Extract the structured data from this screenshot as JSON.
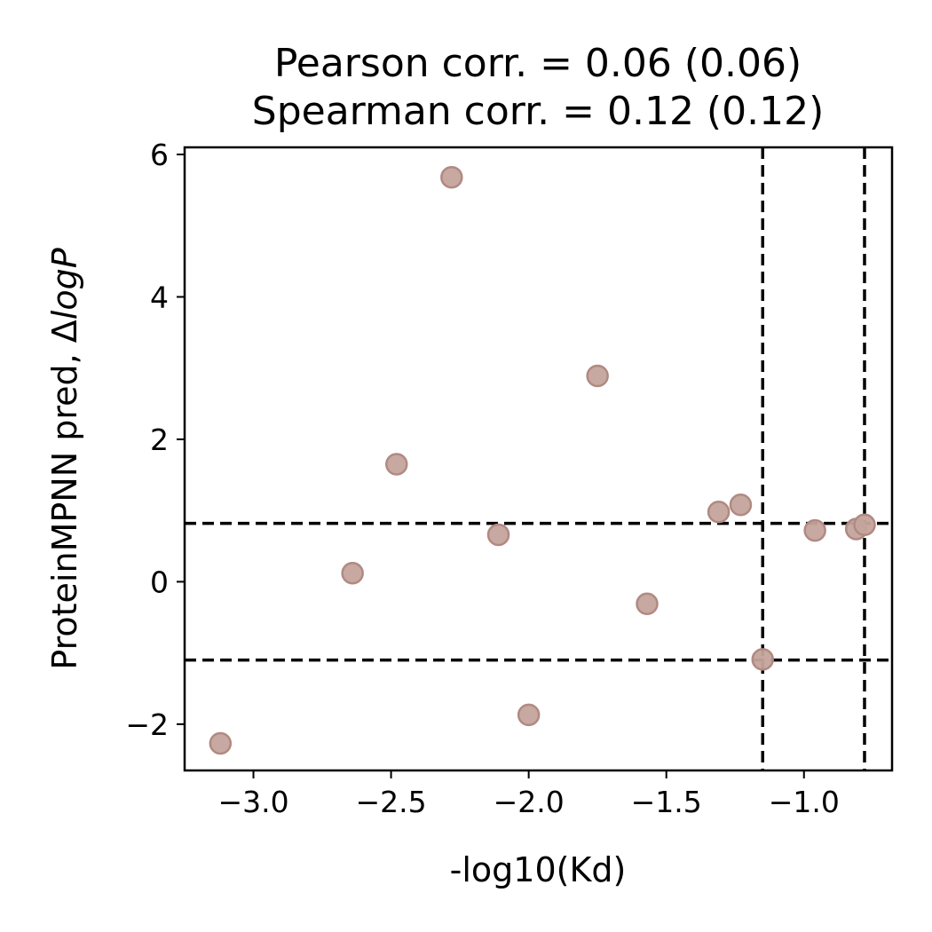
{
  "chart_data": {
    "type": "scatter",
    "title_line1": "Pearson corr. = 0.06 (0.06)",
    "title_line2": "Spearman corr. = 0.12 (0.12)",
    "xlabel": "-log10(Kd)",
    "ylabel_main": "ProteinMPNN pred, Δ",
    "ylabel_italic": "logP",
    "xlim": [
      -3.25,
      -0.68
    ],
    "ylim": [
      -2.65,
      6.1
    ],
    "x_ticks": [
      -3.0,
      -2.5,
      -2.0,
      -1.5,
      -1.0
    ],
    "x_tick_labels": [
      "−3.0",
      "−2.5",
      "−2.0",
      "−1.5",
      "−1.0"
    ],
    "y_ticks": [
      -2,
      0,
      2,
      4,
      6
    ],
    "y_tick_labels": [
      "−2",
      "0",
      "2",
      "4",
      "6"
    ],
    "grid": false,
    "marker_color": "#c4a49c",
    "marker_edge_color": "#b08a82",
    "reference_lines": {
      "vertical": [
        -1.15,
        -0.78
      ],
      "horizontal": [
        0.82,
        -1.1
      ],
      "style": "dashed",
      "color": "#000000"
    },
    "points": [
      {
        "x": -3.12,
        "y": -2.27
      },
      {
        "x": -2.64,
        "y": 0.12
      },
      {
        "x": -2.48,
        "y": 1.65
      },
      {
        "x": -2.28,
        "y": 5.68
      },
      {
        "x": -2.11,
        "y": 0.66
      },
      {
        "x": -2.0,
        "y": -1.87
      },
      {
        "x": -1.75,
        "y": 2.89
      },
      {
        "x": -1.57,
        "y": -0.31
      },
      {
        "x": -1.31,
        "y": 0.98
      },
      {
        "x": -1.23,
        "y": 1.08
      },
      {
        "x": -1.15,
        "y": -1.09
      },
      {
        "x": -0.96,
        "y": 0.72
      },
      {
        "x": -0.81,
        "y": 0.74
      },
      {
        "x": -0.78,
        "y": 0.8
      }
    ]
  }
}
